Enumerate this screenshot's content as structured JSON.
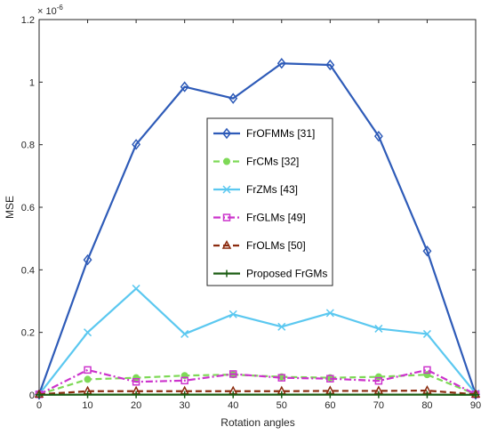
{
  "chart_data": {
    "type": "line",
    "title": "",
    "xlabel": "Rotation angles",
    "ylabel": "MSE",
    "y_exponent": "× 10",
    "y_exponent_power": "-6",
    "xlim": [
      0,
      90
    ],
    "ylim": [
      0,
      1.2
    ],
    "x_ticks": [
      0,
      10,
      20,
      30,
      40,
      50,
      60,
      70,
      80,
      90
    ],
    "x_tick_labels": [
      "0",
      "10",
      "20",
      "30",
      "40",
      "50",
      "60",
      "70",
      "80",
      "90"
    ],
    "y_ticks": [
      0,
      0.2,
      0.4,
      0.6,
      0.8,
      1.0,
      1.2
    ],
    "y_tick_labels": [
      "0",
      "0.2",
      "0.4",
      "0.6",
      "0.8",
      "1",
      "1.2"
    ],
    "grid": false,
    "legend_placement": "center",
    "x": [
      0,
      10,
      20,
      30,
      40,
      50,
      60,
      70,
      80,
      90
    ],
    "series": [
      {
        "name": "FrOFMMs [31]",
        "color": "#2e5bb8",
        "dash": "solid",
        "marker": "diamond",
        "values": [
          0.002,
          0.432,
          0.801,
          0.985,
          0.948,
          1.06,
          1.055,
          0.827,
          0.46,
          0.002
        ]
      },
      {
        "name": "FrCMs [32]",
        "color": "#7ed957",
        "dash": "dashed",
        "marker": "dot",
        "values": [
          0.002,
          0.05,
          0.055,
          0.062,
          0.065,
          0.058,
          0.055,
          0.058,
          0.065,
          0.002
        ]
      },
      {
        "name": "FrZMs [43]",
        "color": "#5bc8f0",
        "dash": "solid",
        "marker": "x",
        "values": [
          0.002,
          0.2,
          0.34,
          0.195,
          0.258,
          0.218,
          0.262,
          0.212,
          0.195,
          0.005
        ]
      },
      {
        "name": "FrGLMs [49]",
        "color": "#cc33cc",
        "dash": "dashdot",
        "marker": "square",
        "values": [
          0.002,
          0.08,
          0.042,
          0.046,
          0.067,
          0.055,
          0.052,
          0.045,
          0.08,
          0.002
        ]
      },
      {
        "name": "FrOLMs [50]",
        "color": "#8b2b0e",
        "dash": "dashed",
        "marker": "triangle",
        "values": [
          0.002,
          0.012,
          0.012,
          0.012,
          0.012,
          0.012,
          0.013,
          0.013,
          0.014,
          0.002
        ]
      },
      {
        "name": "Proposed FrGMs",
        "color": "#1a5c12",
        "dash": "solid",
        "marker": "plus",
        "values": [
          0.0005,
          0.001,
          0.001,
          0.001,
          0.001,
          0.001,
          0.001,
          0.001,
          0.001,
          0.0005
        ]
      }
    ]
  }
}
